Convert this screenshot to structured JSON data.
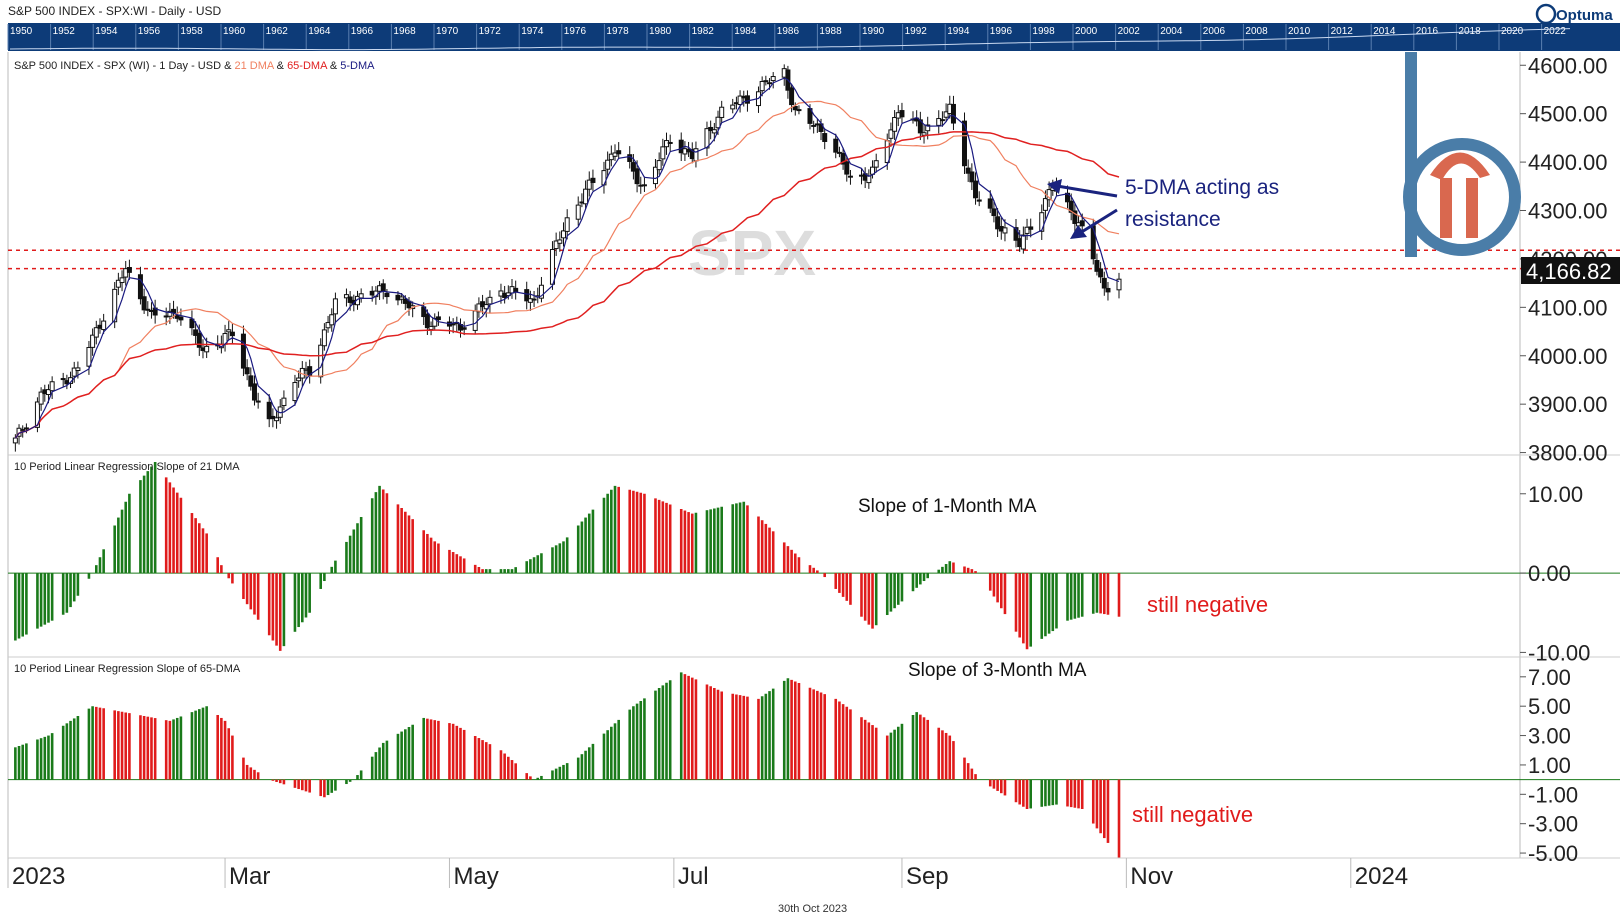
{
  "window": {
    "title": "S&P 500 INDEX - SPX:WI - Daily - USD",
    "brand": "Optuma",
    "footer_date": "30th Oct 2023"
  },
  "overview_years": [
    "1950",
    "1952",
    "1954",
    "1956",
    "1958",
    "1960",
    "1962",
    "1964",
    "1966",
    "1968",
    "1970",
    "1972",
    "1974",
    "1976",
    "1978",
    "1980",
    "1982",
    "1984",
    "1986",
    "1988",
    "1990",
    "1992",
    "1994",
    "1996",
    "1998",
    "2000",
    "2002",
    "2004",
    "2006",
    "2008",
    "2010",
    "2012",
    "2014",
    "2016",
    "2018",
    "2020",
    "2022"
  ],
  "colors": {
    "up": "#1a7a1a",
    "down": "#e01b1b",
    "ma21": "#f08060",
    "ma65": "#e02020",
    "ma5": "#1a1a80",
    "annotation_blue": "#1a237e",
    "annotation_red": "#e01b1b",
    "overview_bg": "#0d3b78",
    "logo_blue": "#4a7da8",
    "logo_red": "#d9684f",
    "price_tag_bg": "#111111"
  },
  "time_axis": [
    "2023",
    "Mar",
    "May",
    "Jul",
    "Sep",
    "Nov",
    "2024"
  ],
  "watermark": "SPX",
  "panels": {
    "price": {
      "legend_parts": [
        "S&P 500 INDEX - SPX (WI) - 1 Day - USD & ",
        "21 DMA",
        " & ",
        "65-DMA",
        " & ",
        "5-DMA"
      ],
      "last_price": "4,166.82",
      "annotation": [
        "5-DMA acting as",
        "resistance"
      ]
    },
    "slope21": {
      "legend": "10 Period Linear Regression Slope of 21 DMA",
      "caption": "Slope of 1-Month MA",
      "status": "still negative"
    },
    "slope65": {
      "legend": "10 Period Linear Regression Slope of 65-DMA",
      "caption": "Slope of 3-Month MA",
      "status": "still negative"
    }
  },
  "chart_data": [
    {
      "type": "candlestick",
      "title": "S&P 500 INDEX - SPX (WI) - 1 Day - USD",
      "x_axis": [
        "2023",
        "Mar",
        "May",
        "Jul",
        "Sep",
        "Nov",
        "2024"
      ],
      "y_ticks": [
        "4600.00",
        "4500.00",
        "4400.00",
        "4300.00",
        "4200.00",
        "4100.00",
        "4000.00",
        "3900.00",
        "3800.00"
      ],
      "ylim": [
        3795,
        4615
      ],
      "series": [
        {
          "name": "SPX",
          "close_path": [
            [
              "2023-01-03",
              3824
            ],
            [
              "2023-01-10",
              3919
            ],
            [
              "2023-01-20",
              3972
            ],
            [
              "2023-02-02",
              4179
            ],
            [
              "2023-02-09",
              4081
            ],
            [
              "2023-02-16",
              4090
            ],
            [
              "2023-02-23",
              4012
            ],
            [
              "2023-03-03",
              4045
            ],
            [
              "2023-03-09",
              3918
            ],
            [
              "2023-03-13",
              3855
            ],
            [
              "2023-03-20",
              3951
            ],
            [
              "2023-03-24",
              3970
            ],
            [
              "2023-03-31",
              4109
            ],
            [
              "2023-04-14",
              4137
            ],
            [
              "2023-04-25",
              4071
            ],
            [
              "2023-05-04",
              4061
            ],
            [
              "2023-05-15",
              4136
            ],
            [
              "2023-05-24",
              4115
            ],
            [
              "2023-06-02",
              4282
            ],
            [
              "2023-06-15",
              4426
            ],
            [
              "2023-06-23",
              4348
            ],
            [
              "2023-06-30",
              4450
            ],
            [
              "2023-07-06",
              4411
            ],
            [
              "2023-07-14",
              4505
            ],
            [
              "2023-07-21",
              4536
            ],
            [
              "2023-07-31",
              4588
            ],
            [
              "2023-08-03",
              4501
            ],
            [
              "2023-08-10",
              4468
            ],
            [
              "2023-08-18",
              4369
            ],
            [
              "2023-08-24",
              4376
            ],
            [
              "2023-08-31",
              4508
            ],
            [
              "2023-09-06",
              4465
            ],
            [
              "2023-09-14",
              4505
            ],
            [
              "2023-09-21",
              4330
            ],
            [
              "2023-09-27",
              4274
            ],
            [
              "2023-10-03",
              4229
            ],
            [
              "2023-10-12",
              4349
            ],
            [
              "2023-10-19",
              4278
            ],
            [
              "2023-10-26",
              4137
            ],
            [
              "2023-10-30",
              4166.82
            ]
          ]
        },
        {
          "name": "21 DMA"
        },
        {
          "name": "65-DMA"
        },
        {
          "name": "5-DMA"
        }
      ],
      "reference_lines": [
        4218,
        4180
      ],
      "annotation": "5-DMA acting as resistance",
      "watermark": "SPX",
      "last_value": 4166.82
    },
    {
      "type": "bar",
      "title": "10 Period Linear Regression Slope of 21 DMA",
      "y_ticks": [
        "10.00",
        "0.00",
        "-10.00"
      ],
      "ylim": [
        -10.2,
        13.5
      ],
      "series": [
        {
          "name": "10 Period Linear Regression Slope of 21 DMA",
          "path": [
            [
              "2023-01-03",
              -8.5
            ],
            [
              "2023-01-17",
              -5.0
            ],
            [
              "2023-01-24",
              0.0
            ],
            [
              "2023-02-03",
              10.0
            ],
            [
              "2023-02-10",
              14.0
            ],
            [
              "2023-02-24",
              5.0
            ],
            [
              "2023-03-01",
              0.0
            ],
            [
              "2023-03-16",
              -9.8
            ],
            [
              "2023-03-24",
              -5.0
            ],
            [
              "2023-03-29",
              0.0
            ],
            [
              "2023-04-12",
              11.0
            ],
            [
              "2023-04-27",
              4.0
            ],
            [
              "2023-05-10",
              0.5
            ],
            [
              "2023-05-18",
              0.5
            ],
            [
              "2023-06-01",
              4.0
            ],
            [
              "2023-06-15",
              11.0
            ],
            [
              "2023-06-23",
              10.0
            ],
            [
              "2023-07-06",
              7.5
            ],
            [
              "2023-07-20",
              9.0
            ],
            [
              "2023-08-04",
              2.0
            ],
            [
              "2023-08-10",
              0.0
            ],
            [
              "2023-08-24",
              -7.0
            ],
            [
              "2023-09-07",
              -1.0
            ],
            [
              "2023-09-14",
              1.5
            ],
            [
              "2023-09-20",
              0.5
            ],
            [
              "2023-09-22",
              0.0
            ],
            [
              "2023-10-05",
              -9.6
            ],
            [
              "2023-10-16",
              -6.0
            ],
            [
              "2023-10-24",
              -5.0
            ],
            [
              "2023-10-30",
              -5.5
            ]
          ]
        }
      ],
      "caption": "Slope of 1-Month MA",
      "annotation": "still negative"
    },
    {
      "type": "bar",
      "title": "10 Period Linear Regression Slope of 65-DMA",
      "y_ticks": [
        "7.00",
        "5.00",
        "3.00",
        "1.00",
        "-1.00",
        "-3.00",
        "-5.00"
      ],
      "ylim": [
        -5.2,
        7.6
      ],
      "series": [
        {
          "name": "10 Period Linear Regression Slope of 65-DMA",
          "path": [
            [
              "2023-01-03",
              2.2
            ],
            [
              "2023-01-12",
              3.0
            ],
            [
              "2023-01-24",
              5.0
            ],
            [
              "2023-02-14",
              4.0
            ],
            [
              "2023-02-24",
              5.0
            ],
            [
              "2023-03-01",
              4.0
            ],
            [
              "2023-03-07",
              1.0
            ],
            [
              "2023-03-13",
              0.0
            ],
            [
              "2023-03-28",
              -1.2
            ],
            [
              "2023-04-05",
              0.0
            ],
            [
              "2023-04-13",
              2.5
            ],
            [
              "2023-04-24",
              4.2
            ],
            [
              "2023-05-02",
              3.8
            ],
            [
              "2023-05-15",
              2.0
            ],
            [
              "2023-05-24",
              0.0
            ],
            [
              "2023-06-05",
              1.5
            ],
            [
              "2023-06-20",
              5.0
            ],
            [
              "2023-07-03",
              7.3
            ],
            [
              "2023-07-14",
              6.0
            ],
            [
              "2023-07-24",
              5.5
            ],
            [
              "2023-08-01",
              6.9
            ],
            [
              "2023-08-14",
              5.5
            ],
            [
              "2023-08-28",
              3.0
            ],
            [
              "2023-09-05",
              4.6
            ],
            [
              "2023-09-14",
              3.0
            ],
            [
              "2023-09-22",
              0.0
            ],
            [
              "2023-10-05",
              -2.0
            ],
            [
              "2023-10-13",
              -1.7
            ],
            [
              "2023-10-20",
              -2.0
            ],
            [
              "2023-10-30",
              -5.3
            ]
          ]
        }
      ],
      "caption": "Slope of 3-Month MA",
      "annotation": "still negative"
    }
  ]
}
